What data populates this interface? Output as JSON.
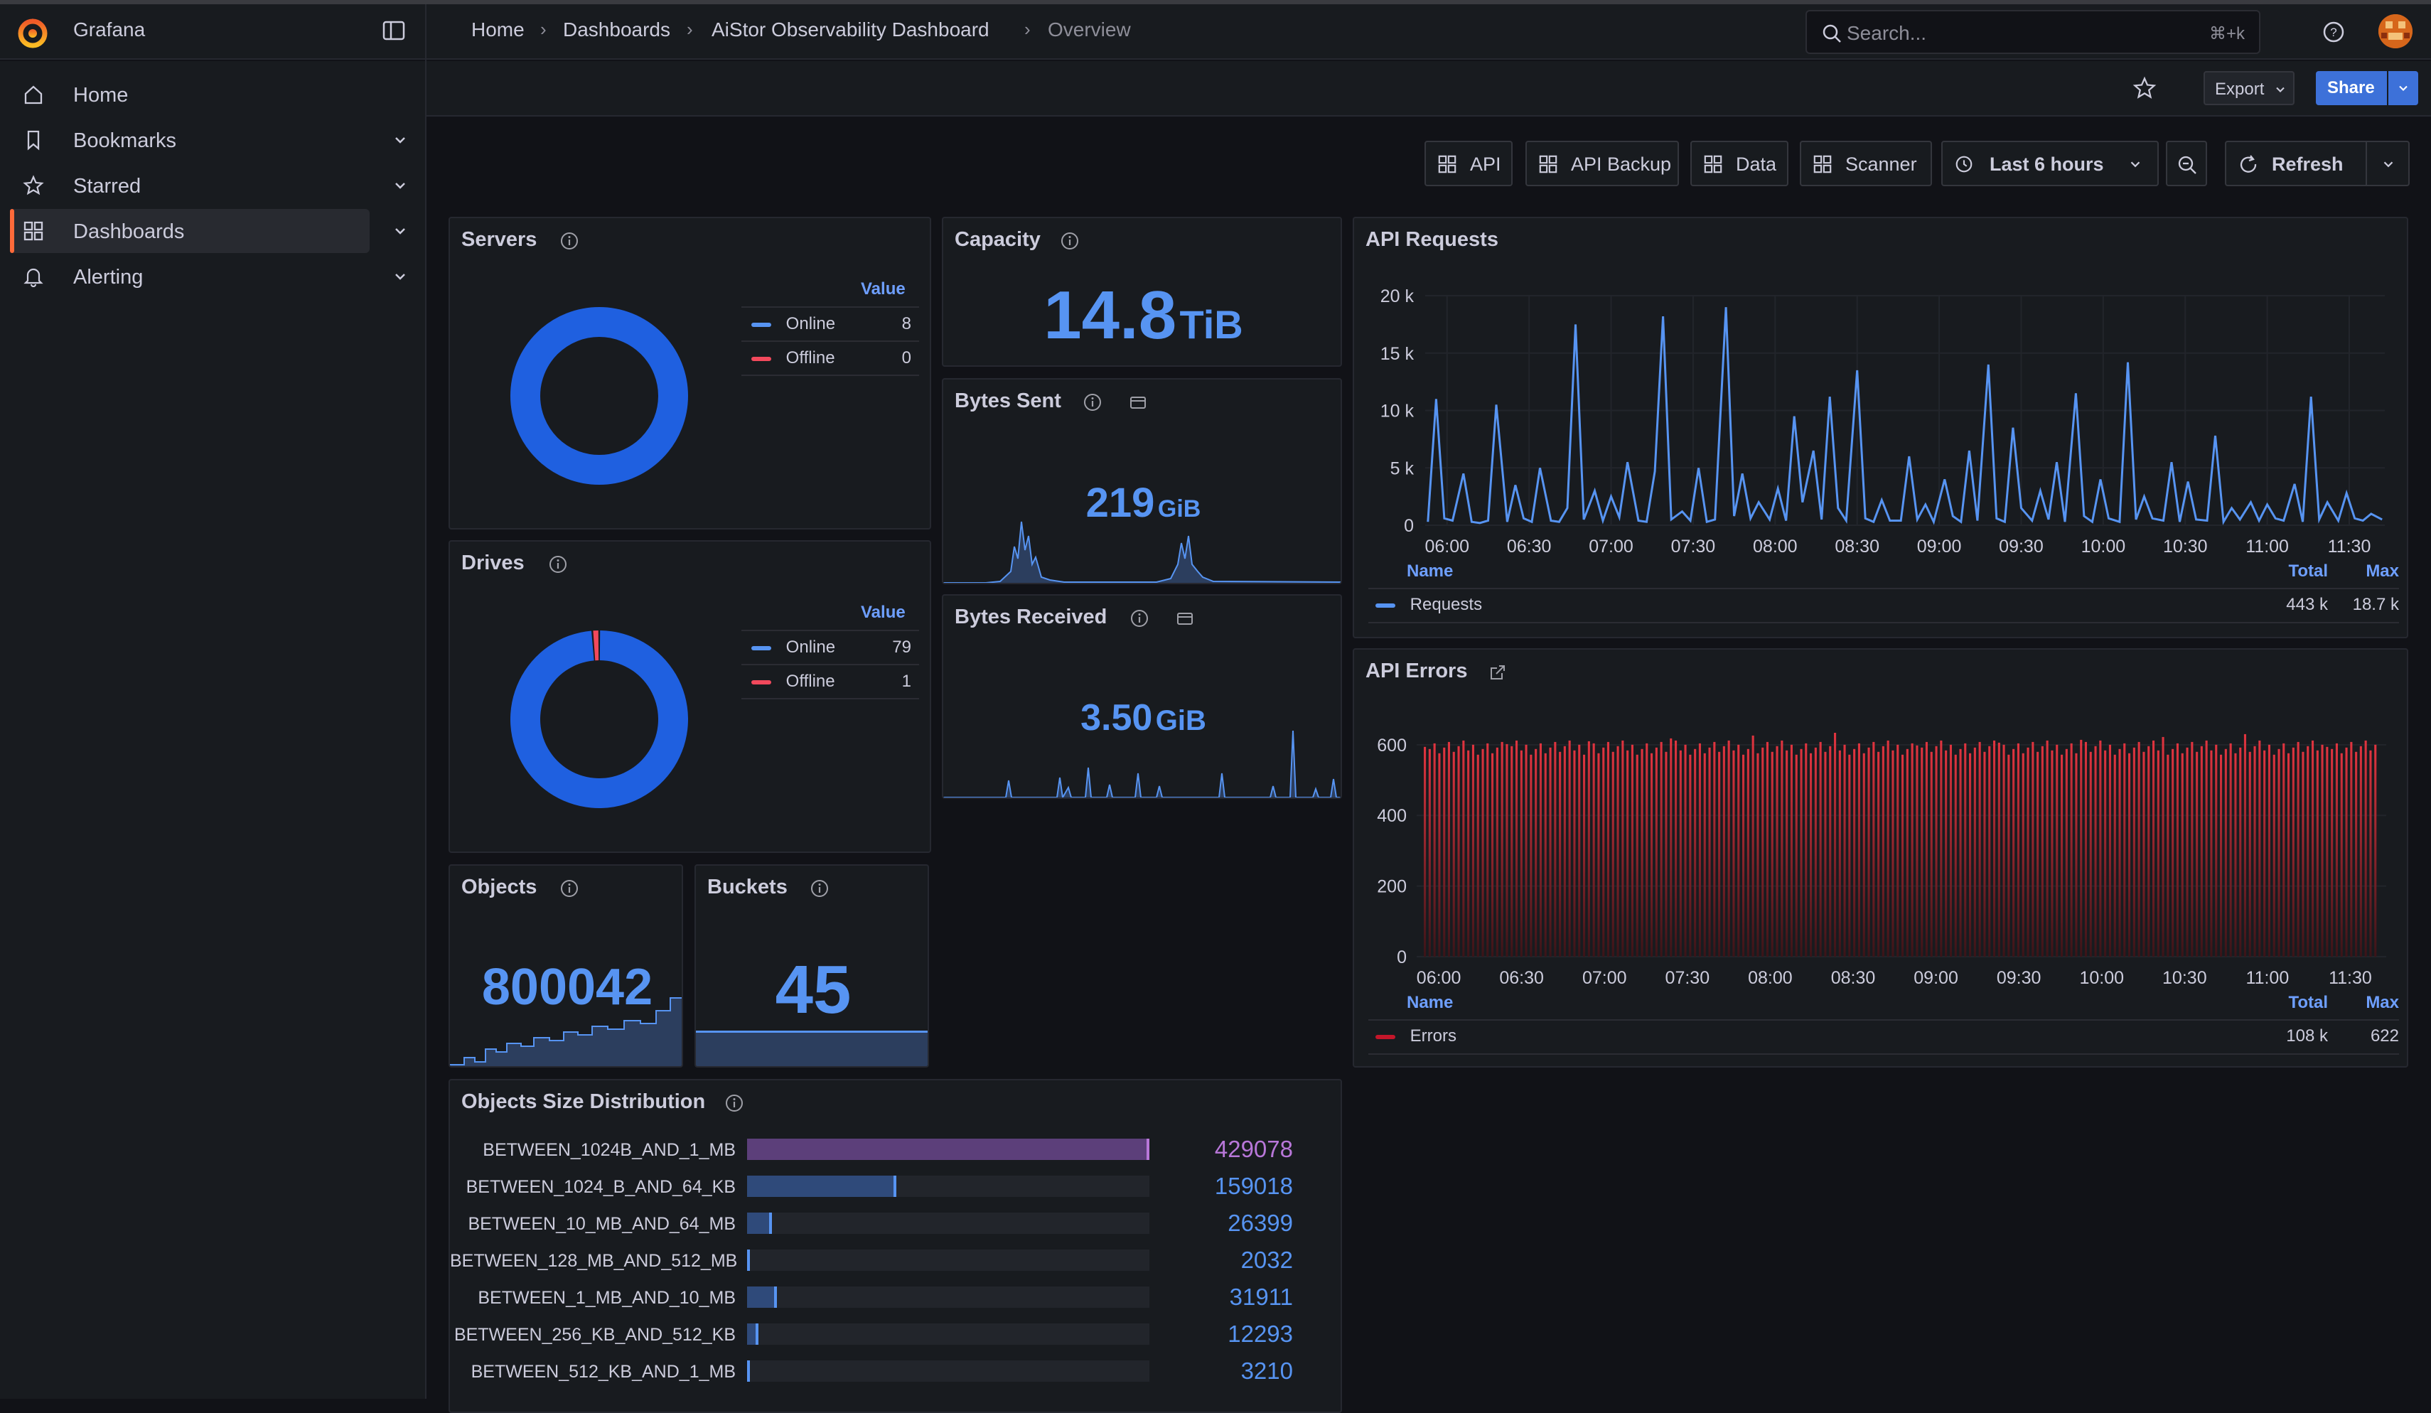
{
  "app": {
    "name": "Grafana"
  },
  "breadcrumb": [
    "Home",
    "Dashboards",
    "AiStor Observability Dashboard",
    "Overview"
  ],
  "search": {
    "placeholder": "Search...",
    "shortcut": "⌘+k"
  },
  "sidebar": {
    "items": [
      {
        "label": "Home",
        "icon": "home-icon",
        "active": false,
        "chevron": false
      },
      {
        "label": "Bookmarks",
        "icon": "bookmark-icon",
        "active": false,
        "chevron": true
      },
      {
        "label": "Starred",
        "icon": "star-icon",
        "active": false,
        "chevron": true
      },
      {
        "label": "Dashboards",
        "icon": "grid-icon",
        "active": true,
        "chevron": true
      },
      {
        "label": "Alerting",
        "icon": "bell-icon",
        "active": false,
        "chevron": true
      }
    ]
  },
  "toolbar": {
    "export_label": "Export",
    "share_label": "Share",
    "links": [
      "API",
      "API Backup",
      "Data",
      "Scanner"
    ],
    "time_range": "Last 6 hours",
    "refresh_label": "Refresh"
  },
  "colors": {
    "accent": "#5794f2",
    "online": "#1f60e0",
    "offline": "#f2495c",
    "errors": "#c4162a",
    "brand": "#ff6a3a"
  },
  "panels": {
    "servers": {
      "title": "Servers",
      "legend_header": "Value",
      "rows": [
        {
          "name": "Online",
          "value": "8"
        },
        {
          "name": "Offline",
          "value": "0"
        }
      ]
    },
    "drives": {
      "title": "Drives",
      "legend_header": "Value",
      "rows": [
        {
          "name": "Online",
          "value": "79"
        },
        {
          "name": "Offline",
          "value": "1"
        }
      ]
    },
    "capacity": {
      "title": "Capacity",
      "value": "14.8",
      "unit": "TiB"
    },
    "bytes_sent": {
      "title": "Bytes Sent",
      "value": "219",
      "unit": "GiB"
    },
    "bytes_received": {
      "title": "Bytes Received",
      "value": "3.50",
      "unit": "GiB"
    },
    "objects": {
      "title": "Objects",
      "value": "800042"
    },
    "buckets": {
      "title": "Buckets",
      "value": "45"
    },
    "api_requests": {
      "title": "API Requests",
      "legend": {
        "name_header": "Name",
        "total_header": "Total",
        "max_header": "Max",
        "series": "Requests",
        "total": "443 k",
        "max": "18.7 k"
      }
    },
    "api_errors": {
      "title": "API Errors",
      "legend": {
        "name_header": "Name",
        "total_header": "Total",
        "max_header": "Max",
        "series": "Errors",
        "total": "108 k",
        "max": "622"
      }
    },
    "objects_size": {
      "title": "Objects Size Distribution"
    }
  },
  "chart_data": [
    {
      "type": "pie",
      "title": "Servers",
      "categories": [
        "Online",
        "Offline"
      ],
      "values": [
        8,
        0
      ]
    },
    {
      "type": "pie",
      "title": "Drives",
      "categories": [
        "Online",
        "Offline"
      ],
      "values": [
        79,
        1
      ]
    },
    {
      "type": "line",
      "title": "API Requests",
      "x_ticks": [
        "06:00",
        "06:30",
        "07:00",
        "07:30",
        "08:00",
        "08:30",
        "09:00",
        "09:30",
        "10:00",
        "10:30",
        "11:00",
        "11:30"
      ],
      "y_ticks": [
        "0",
        "5 k",
        "10 k",
        "15 k",
        "20 k"
      ],
      "ylim": [
        0,
        20000
      ],
      "series": [
        {
          "name": "Requests",
          "x": [
            "05:53",
            "05:56",
            "05:59",
            "06:02",
            "06:06",
            "06:09",
            "06:12",
            "06:15",
            "06:18",
            "06:22",
            "06:25",
            "06:28",
            "06:31",
            "06:34",
            "06:38",
            "06:41",
            "06:44",
            "06:47",
            "06:50",
            "06:54",
            "06:57",
            "07:00",
            "07:03",
            "07:06",
            "07:10",
            "07:13",
            "07:16",
            "07:19",
            "07:22",
            "07:26",
            "07:29",
            "07:32",
            "07:35",
            "07:38",
            "07:42",
            "07:45",
            "07:48",
            "07:51",
            "07:54",
            "07:58",
            "08:01",
            "08:04",
            "08:07",
            "08:10",
            "08:14",
            "08:17",
            "08:20",
            "08:23",
            "08:26",
            "08:30",
            "08:33",
            "08:36",
            "08:39",
            "08:42",
            "08:46",
            "08:49",
            "08:52",
            "08:55",
            "08:58",
            "09:02",
            "09:05",
            "09:08",
            "09:11",
            "09:14",
            "09:18",
            "09:21",
            "09:24",
            "09:27",
            "09:30",
            "09:34",
            "09:37",
            "09:40",
            "09:43",
            "09:46",
            "09:50",
            "09:53",
            "09:56",
            "09:59",
            "10:02",
            "10:06",
            "10:09",
            "10:12",
            "10:15",
            "10:18",
            "10:22",
            "10:25",
            "10:28",
            "10:31",
            "10:34",
            "10:38",
            "10:41",
            "10:44",
            "10:47",
            "10:50",
            "10:54",
            "10:57",
            "11:00",
            "11:03",
            "11:06",
            "11:10",
            "11:13",
            "11:16",
            "11:19",
            "11:22",
            "11:26",
            "11:29",
            "11:32",
            "11:35",
            "11:38",
            "11:42"
          ],
          "values": [
            300,
            11000,
            600,
            400,
            4500,
            300,
            200,
            400,
            10500,
            300,
            3500,
            600,
            300,
            5000,
            400,
            300,
            1500,
            17500,
            500,
            3000,
            400,
            2500,
            700,
            5500,
            400,
            300,
            4700,
            18200,
            500,
            1200,
            400,
            5000,
            300,
            500,
            19000,
            800,
            4500,
            600,
            2000,
            500,
            3200,
            400,
            9500,
            2000,
            6500,
            500,
            11200,
            1500,
            400,
            13500,
            600,
            300,
            2200,
            400,
            400,
            6000,
            500,
            1800,
            300,
            4000,
            800,
            300,
            6500,
            400,
            14000,
            600,
            300,
            8500,
            1500,
            400,
            3000,
            500,
            5500,
            300,
            11500,
            800,
            300,
            4000,
            600,
            300,
            14200,
            500,
            2500,
            600,
            400,
            5500,
            300,
            3800,
            500,
            400,
            7800,
            300,
            1500,
            500,
            2000,
            400,
            1800,
            600,
            400,
            3600,
            300,
            11200,
            500,
            2000,
            400,
            2800,
            600,
            400,
            1000,
            500
          ]
        }
      ]
    },
    {
      "type": "bar",
      "title": "API Errors",
      "x_ticks": [
        "06:00",
        "06:30",
        "07:00",
        "07:30",
        "08:00",
        "08:30",
        "09:00",
        "09:30",
        "10:00",
        "10:30",
        "11:00",
        "11:30"
      ],
      "y_ticks": [
        "0",
        "200",
        "400",
        "600"
      ],
      "ylim": [
        0,
        650
      ],
      "series": [
        {
          "name": "Errors",
          "max": 622,
          "typical": 600
        }
      ]
    },
    {
      "type": "bar",
      "title": "Objects Size Distribution",
      "categories": [
        "BETWEEN_1024B_AND_1_MB",
        "BETWEEN_1024_B_AND_64_KB",
        "BETWEEN_10_MB_AND_64_MB",
        "BETWEEN_128_MB_AND_512_MB",
        "BETWEEN_1_MB_AND_10_MB",
        "BETWEEN_256_KB_AND_512_KB",
        "BETWEEN_512_KB_AND_1_MB"
      ],
      "values": [
        429078,
        159018,
        26399,
        2032,
        31911,
        12293,
        3210
      ],
      "xlim": [
        0,
        429078
      ]
    }
  ]
}
